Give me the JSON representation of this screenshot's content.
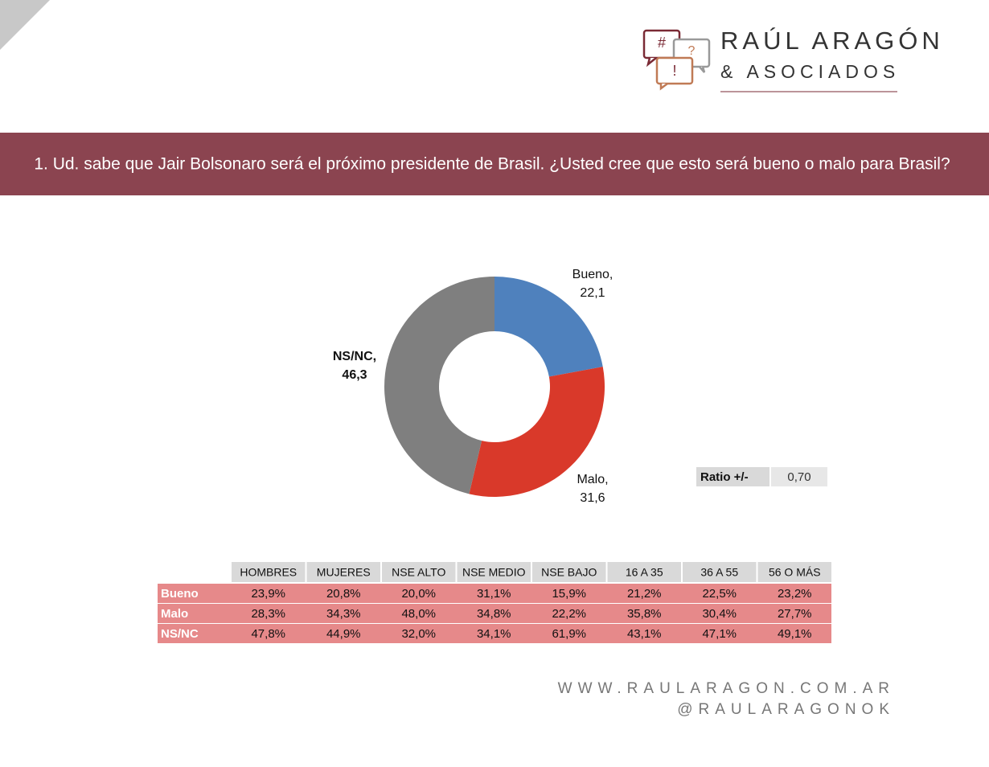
{
  "logo": {
    "name": "RAÚL ARAGÓN",
    "sub": "& ASOCIADOS",
    "symbols": [
      "#",
      "?",
      "!"
    ]
  },
  "header": {
    "title": "1. Ud. sabe que Jair Bolsonaro será el próximo presidente de Brasil. ¿Usted cree que esto será bueno o malo para Brasil?"
  },
  "chart_data": {
    "type": "pie",
    "donut": true,
    "categories": [
      "Bueno,",
      "Malo,",
      "NS/NC,"
    ],
    "values": [
      22.1,
      31.6,
      46.3
    ],
    "value_labels": [
      "22,1",
      "31,6",
      "46,3"
    ],
    "colors": [
      "#4f81bd",
      "#d9392a",
      "#7f7f7f"
    ]
  },
  "ratio": {
    "label": "Ratio +/-",
    "value": "0,70"
  },
  "table": {
    "columns": [
      "HOMBRES",
      "MUJERES",
      "NSE ALTO",
      "NSE MEDIO",
      "NSE BAJO",
      "16 A 35",
      "36 A 55",
      "56 O MÁS"
    ],
    "rows": [
      [
        "Bueno",
        "23,9%",
        "20,8%",
        "20,0%",
        "31,1%",
        "15,9%",
        "21,2%",
        "22,5%",
        "23,2%"
      ],
      [
        "Malo",
        "28,3%",
        "34,3%",
        "48,0%",
        "34,8%",
        "22,2%",
        "35,8%",
        "30,4%",
        "27,7%"
      ],
      [
        "NS/NC",
        "47,8%",
        "44,9%",
        "32,0%",
        "34,1%",
        "61,9%",
        "43,1%",
        "47,1%",
        "49,1%"
      ]
    ]
  },
  "footer": {
    "web": "WWW.RAULARAGON.COM.AR",
    "handle": "@RAULARAGONOK"
  }
}
